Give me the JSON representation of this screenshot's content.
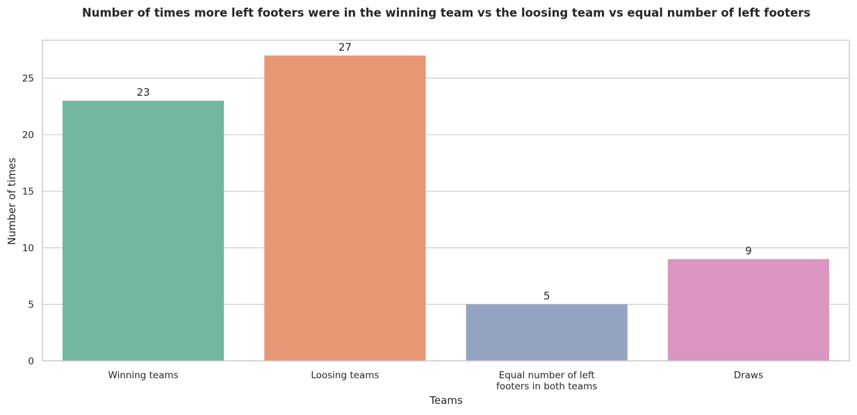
{
  "chart_data": {
    "type": "bar",
    "title": "Number of times more left footers were in the winning team vs the loosing team vs equal number of left footers",
    "xlabel": "Teams",
    "ylabel": "Number of times",
    "categories": [
      [
        "Winning teams"
      ],
      [
        "Loosing teams"
      ],
      [
        "Equal number of left",
        "footers in both teams"
      ],
      [
        "Draws"
      ]
    ],
    "values": [
      23,
      27,
      5,
      9
    ],
    "data_labels": [
      "23",
      "27",
      "5",
      "9"
    ],
    "colors": [
      "#73b6a0",
      "#e89775",
      "#94a3c2",
      "#da95c1"
    ],
    "yticks": [
      0,
      5,
      10,
      15,
      20,
      25
    ],
    "ytick_labels": [
      "0",
      "5",
      "10",
      "15",
      "20",
      "25"
    ],
    "ylim": [
      0,
      28.35
    ],
    "grid": true,
    "grid_color": "#cccccc",
    "spine_color": "#cccccc",
    "legend": false
  }
}
